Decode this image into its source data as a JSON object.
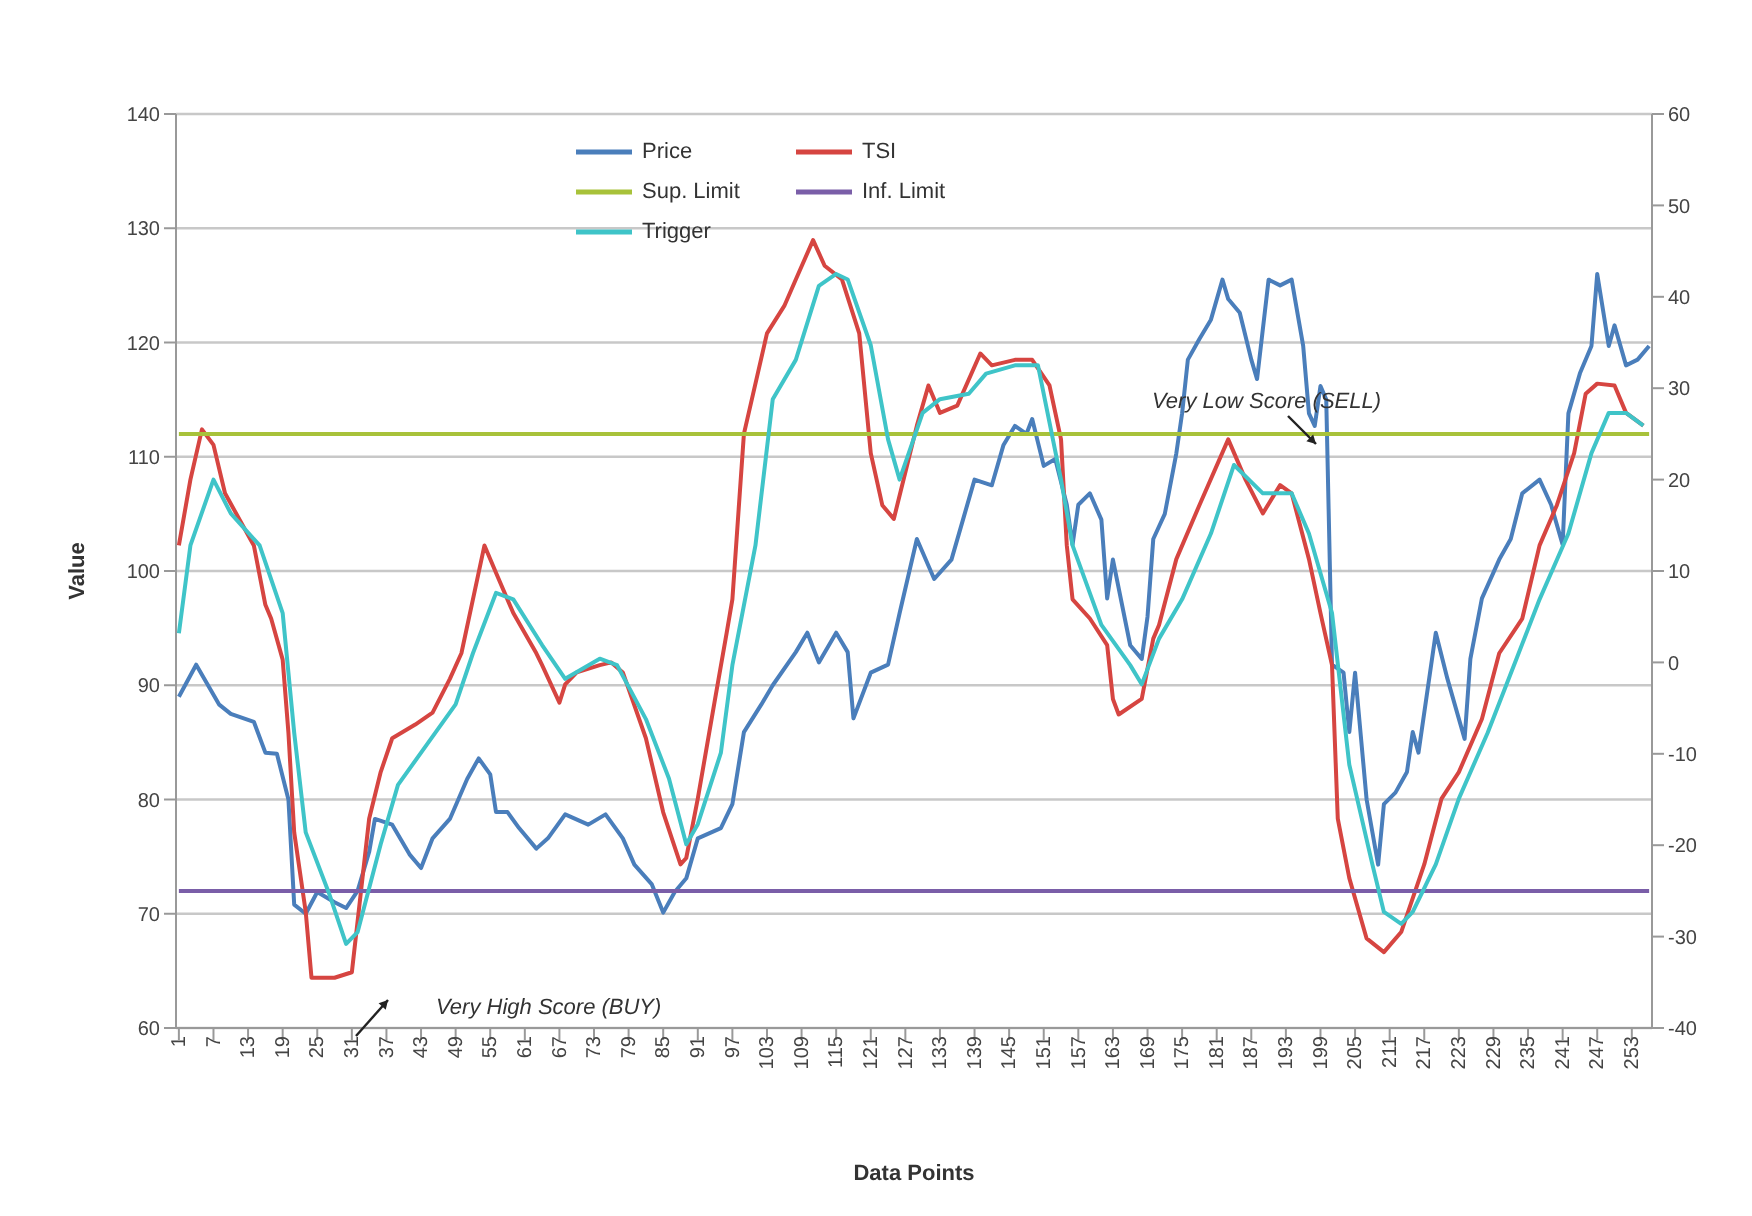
{
  "chart_data": {
    "type": "line",
    "xlabel": "Data Points",
    "ylabel": "Value",
    "xlim": [
      0.5,
      256.5
    ],
    "xticks": [
      1,
      7,
      13,
      19,
      25,
      31,
      37,
      43,
      49,
      55,
      61,
      67,
      73,
      79,
      85,
      91,
      97,
      103,
      109,
      115,
      121,
      127,
      133,
      139,
      145,
      151,
      157,
      163,
      169,
      175,
      181,
      187,
      193,
      199,
      205,
      211,
      217,
      223,
      229,
      235,
      241,
      247,
      253
    ],
    "ylim": [
      60,
      140
    ],
    "yticks": [
      60,
      70,
      80,
      90,
      100,
      110,
      120,
      130,
      140
    ],
    "y2lim": [
      -40,
      60
    ],
    "y2ticks": [
      -40,
      -30,
      -20,
      -10,
      0,
      10,
      20,
      30,
      40,
      50,
      60
    ],
    "grid": "y",
    "legend": "top",
    "line_style": "solid",
    "marker": "none",
    "annotations": [
      "Very High Score (BUY)",
      "Very Low Score (SELL)"
    ],
    "series": [
      {
        "name": "Price",
        "color": "#4a7ebb",
        "x": [
          1,
          4,
          8,
          10,
          14,
          16,
          18,
          20,
          21,
          23,
          25,
          28,
          30,
          32,
          34,
          35,
          38,
          41,
          43,
          45,
          48,
          51,
          53,
          55,
          56,
          58,
          60,
          63,
          65,
          68,
          72,
          75,
          78,
          80,
          83,
          85,
          87,
          89,
          91,
          95,
          97,
          99,
          102,
          104,
          108,
          110,
          112,
          115,
          117,
          118,
          121,
          124,
          126,
          129,
          132,
          135,
          137,
          139,
          142,
          144,
          146,
          148,
          149,
          151,
          153,
          155,
          156,
          157,
          159,
          161,
          162,
          163,
          166,
          168,
          169,
          170,
          172,
          174,
          175,
          176,
          178,
          180,
          182,
          183,
          185,
          187,
          188,
          190,
          192,
          194,
          195,
          196,
          197,
          198,
          199,
          200,
          201,
          203,
          204,
          205,
          207,
          209,
          210,
          212,
          214,
          215,
          216,
          219,
          221,
          224,
          225,
          227,
          230,
          232,
          234,
          237,
          239,
          241,
          242,
          244,
          246,
          247,
          249,
          250,
          252,
          254,
          256
        ],
        "values": [
          89,
          91.8,
          88.3,
          87.5,
          86.8,
          84.1,
          84,
          80,
          70.8,
          70,
          71.9,
          71,
          70.5,
          72,
          75.4,
          78.3,
          77.8,
          75.2,
          74,
          76.6,
          78.3,
          81.8,
          83.6,
          82.2,
          78.9,
          78.9,
          77.5,
          75.7,
          76.6,
          78.7,
          77.8,
          78.7,
          76.6,
          74.3,
          72.6,
          70.1,
          71.9,
          73.1,
          76.6,
          77.5,
          79.6,
          85.9,
          88.3,
          90,
          92.9,
          94.6,
          92,
          94.6,
          92.9,
          87.1,
          91.1,
          91.8,
          96.3,
          102.8,
          99.3,
          101,
          104.5,
          108,
          107.5,
          111,
          112.7,
          112,
          113.3,
          109.2,
          109.8,
          105.8,
          102.3,
          105.8,
          106.8,
          104.5,
          97.6,
          101,
          93.5,
          92.3,
          96,
          102.8,
          105,
          110.3,
          113.8,
          118.5,
          120.3,
          122,
          125.5,
          123.8,
          122.6,
          118.5,
          116.8,
          125.5,
          125,
          125.5,
          122.6,
          119.7,
          113.8,
          112.7,
          116.2,
          115,
          91.8,
          91.1,
          85.9,
          91.1,
          80,
          74.3,
          79.6,
          80.6,
          82.4,
          85.9,
          84.1,
          94.6,
          90.6,
          85.3,
          92.3,
          97.6,
          101,
          102.8,
          106.8,
          108,
          105.8,
          102.3,
          113.8,
          117.3,
          119.7,
          126,
          119.7,
          121.5,
          118,
          118.5,
          119.7
        ]
      },
      {
        "name": "TSI",
        "color": "#d64541",
        "axis": "y2",
        "x": [
          1,
          3,
          5,
          7,
          9,
          14,
          16,
          17,
          19,
          20,
          21,
          23,
          24,
          28,
          31,
          34,
          36,
          38,
          42,
          45,
          48,
          50,
          52,
          54,
          56,
          59,
          63,
          64,
          67,
          68,
          70,
          74,
          76,
          78,
          82,
          85,
          88,
          89,
          91,
          94,
          96,
          97,
          99,
          103,
          106,
          108,
          111,
          113,
          116,
          119,
          121,
          123,
          125,
          129,
          131,
          133,
          136,
          140,
          142,
          146,
          149,
          152,
          154,
          155,
          156,
          159,
          162,
          163,
          164,
          168,
          170,
          171,
          174,
          178,
          183,
          186,
          189,
          192,
          194,
          197,
          199,
          201,
          202,
          204,
          207,
          210,
          213,
          217,
          220,
          223,
          227,
          230,
          234,
          237,
          240,
          243,
          245,
          247,
          250,
          252,
          255
        ],
        "values": [
          12.8,
          20,
          25.5,
          23.8,
          18.5,
          12.8,
          6.3,
          4.8,
          0.3,
          -7.7,
          -18.6,
          -27.3,
          -34.5,
          -34.5,
          -33.9,
          -17.1,
          -12,
          -8.3,
          -6.8,
          -5.5,
          -1.8,
          1,
          6.9,
          12.8,
          9.8,
          5.4,
          1,
          -0.3,
          -4.4,
          -2.4,
          -1.1,
          -0.3,
          0,
          -1.1,
          -8.3,
          -16.4,
          -22.1,
          -21.4,
          -14.9,
          -4,
          3.2,
          6.9,
          25,
          36,
          39,
          41.9,
          46.2,
          43.4,
          41.9,
          36,
          22.9,
          17.2,
          15.7,
          25.9,
          30.3,
          27.3,
          28.1,
          33.8,
          32.5,
          33.1,
          33.1,
          30.3,
          24.4,
          12.8,
          6.9,
          4.8,
          1.9,
          -4,
          -5.7,
          -4,
          2.6,
          4.1,
          11.3,
          17.2,
          24.4,
          20,
          16.3,
          19.4,
          18.5,
          11.3,
          5.4,
          -0.3,
          -17.1,
          -23.6,
          -30.2,
          -31.7,
          -29.5,
          -22.1,
          -14.9,
          -12,
          -6.2,
          1,
          4.8,
          12.8,
          17.2,
          22.9,
          29.4,
          30.5,
          30.3,
          27.3,
          25.9
        ]
      },
      {
        "name": "Sup. Limit",
        "color": "#a8c23a",
        "axis": "y2",
        "x": [
          1,
          256
        ],
        "values": [
          25,
          25
        ]
      },
      {
        "name": "Inf. Limit",
        "color": "#7a5ea8",
        "axis": "y2",
        "x": [
          1,
          256
        ],
        "values": [
          -25,
          -25
        ]
      },
      {
        "name": "Trigger",
        "color": "#3fc4c8",
        "axis": "y2",
        "x": [
          1,
          3,
          7,
          10,
          15,
          19,
          21,
          23,
          27,
          30,
          32,
          36,
          39,
          44,
          49,
          52,
          56,
          59,
          64,
          68,
          74,
          77,
          82,
          86,
          89,
          91,
          95,
          97,
          101,
          104,
          108,
          112,
          115,
          117,
          121,
          124,
          126,
          130,
          133,
          138,
          141,
          146,
          150,
          154,
          156,
          161,
          166,
          168,
          171,
          175,
          180,
          184,
          189,
          194,
          197,
          201,
          204,
          208,
          210,
          213,
          215,
          219,
          223,
          228,
          233,
          237,
          242,
          246,
          249,
          252,
          255
        ],
        "values": [
          3.2,
          12.8,
          20,
          16.3,
          12.8,
          5.4,
          -7.7,
          -18.6,
          -25.2,
          -30.8,
          -29.5,
          -19.9,
          -13.4,
          -9,
          -4.6,
          1,
          7.6,
          6.9,
          1.9,
          -1.8,
          0.4,
          -0.3,
          -6.2,
          -12.7,
          -19.9,
          -17.7,
          -9.9,
          -0.3,
          12.8,
          28.8,
          33.1,
          41.2,
          42.5,
          41.9,
          34.7,
          24.4,
          20,
          27.3,
          28.8,
          29.4,
          31.6,
          32.5,
          32.5,
          20,
          12.8,
          4.1,
          -0.3,
          -2.4,
          2.6,
          6.9,
          14.1,
          21.6,
          18.5,
          18.5,
          14.1,
          5.4,
          -11.2,
          -22.1,
          -27.3,
          -28.6,
          -27.3,
          -22.1,
          -14.9,
          -7.7,
          0.4,
          6.9,
          14.1,
          22.9,
          27.3,
          27.3,
          25.9
        ]
      }
    ]
  }
}
